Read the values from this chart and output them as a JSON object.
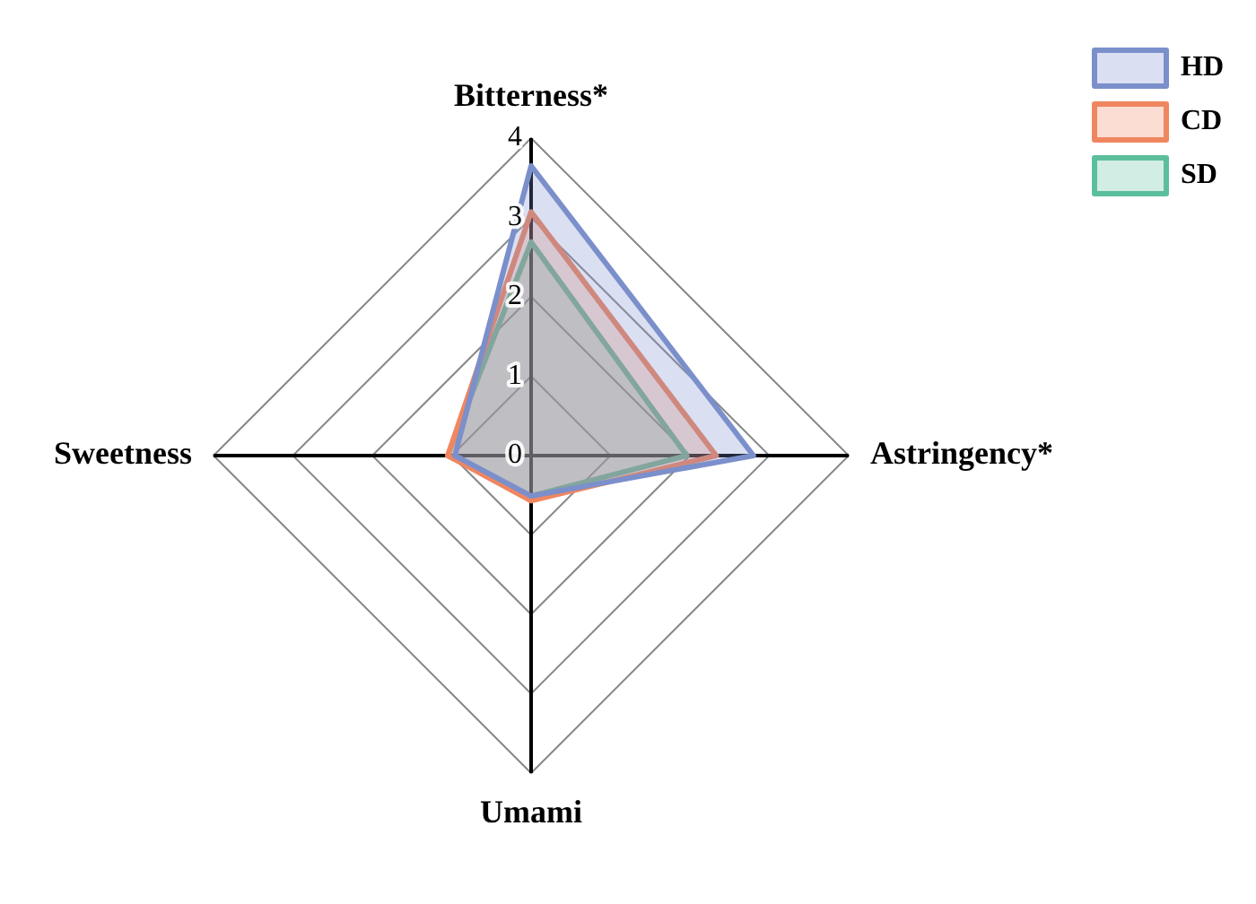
{
  "chart_data": {
    "type": "radar",
    "categories": [
      "Bitterness*",
      "Astringency*",
      "Umami",
      "Sweetness"
    ],
    "series": [
      {
        "name": "HD",
        "color": "#7b8fcb",
        "values": [
          3.65,
          2.8,
          0.51,
          0.96
        ]
      },
      {
        "name": "CD",
        "color": "#f08660",
        "values": [
          3.07,
          2.33,
          0.57,
          1.05
        ]
      },
      {
        "name": "SD",
        "color": "#5cbf9c",
        "values": [
          2.69,
          1.96,
          0.51,
          1.05
        ]
      }
    ],
    "ylim": [
      0,
      4
    ],
    "yticks": [
      0,
      1,
      2,
      3,
      4
    ],
    "grid": true,
    "legend": "top right",
    "marker": "none",
    "line_style": "solid"
  }
}
